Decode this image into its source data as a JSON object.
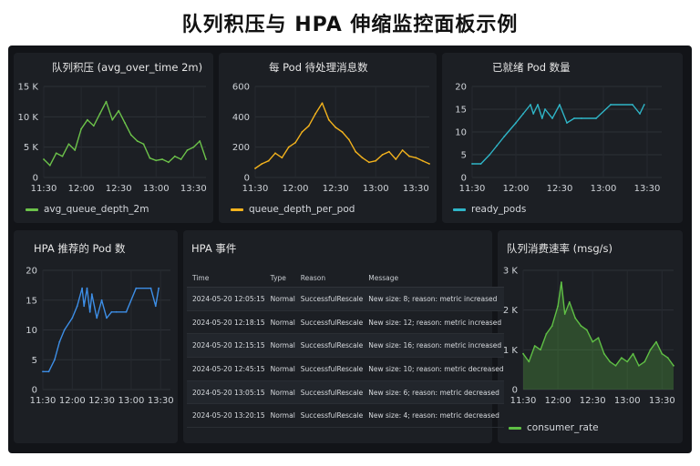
{
  "page_title": "队列积压与 HPA 伸缩监控面板示例",
  "panels": {
    "backlog": {
      "title": "队列积压 (avg_over_time 2m)",
      "legend": "avg_queue_depth_2m"
    },
    "per_pod": {
      "title": "每 Pod 待处理消息数",
      "legend": "queue_depth_per_pod"
    },
    "scaled": {
      "title": "已就绪 Pod 数量",
      "legend": "ready_pods"
    },
    "recommend": {
      "title": "HPA 推荐的 Pod 数"
    },
    "events": {
      "title": "HPA 事件",
      "columns": [
        "Time",
        "Type",
        "Reason",
        "Message"
      ],
      "rows": [
        [
          "2024-05-20 12:05:15",
          "Normal",
          "SuccessfulRescale",
          "New size: 8; reason: metric increased"
        ],
        [
          "2024-05-20 12:18:15",
          "Normal",
          "SuccessfulRescale",
          "New size: 12; reason: metric increased"
        ],
        [
          "2024-05-20 12:15:15",
          "Normal",
          "SuccessfulRescale",
          "New size: 16; reason: metric increased"
        ],
        [
          "2024-05-20 12:45:15",
          "Normal",
          "SuccessfulRescale",
          "New size: 10; reason: metric decreased"
        ],
        [
          "2024-05-20 13:05:15",
          "Normal",
          "SuccessfulRescale",
          "New size: 6; reason: metric decreased"
        ],
        [
          "2024-05-20 13:20:15",
          "Normal",
          "SuccessfulRescale",
          "New size: 4; reason: metric decreased"
        ]
      ]
    },
    "rate": {
      "title": "队列消费速率 (msg/s)",
      "legend": "consumer_rate"
    }
  },
  "colors": {
    "backlog": "#6cc24a",
    "per_pod": "#f2b21d",
    "scaled": "#2fb5c7",
    "recommend": "#3d8ee6",
    "rate": "#5fbf45"
  },
  "chart_data": [
    {
      "id": "backlog",
      "type": "line",
      "ylim": [
        0,
        15000
      ],
      "y_ticks": [
        "0",
        "5 K",
        "10 K",
        "15 K"
      ],
      "x_ticks": [
        "11:30",
        "12:00",
        "12:30",
        "13:00",
        "13:30"
      ],
      "xlim": [
        "11:30",
        "13:40"
      ],
      "series": [
        {
          "name": "avg_queue_depth_2m",
          "x": [
            "11:30",
            "11:35",
            "11:40",
            "11:45",
            "11:50",
            "11:55",
            "12:00",
            "12:05",
            "12:10",
            "12:15",
            "12:20",
            "12:25",
            "12:30",
            "12:35",
            "12:40",
            "12:45",
            "12:50",
            "12:55",
            "13:00",
            "13:05",
            "13:10",
            "13:15",
            "13:20",
            "13:25",
            "13:30",
            "13:35",
            "13:40"
          ],
          "values": [
            3000,
            2000,
            4000,
            3500,
            5500,
            4500,
            8000,
            9500,
            8500,
            10500,
            12500,
            9500,
            11000,
            9000,
            7000,
            6000,
            5500,
            3200,
            2800,
            3000,
            2500,
            3500,
            3000,
            4500,
            5000,
            6000,
            3000
          ]
        }
      ]
    },
    {
      "id": "per_pod",
      "type": "line",
      "ylim": [
        0,
        600
      ],
      "y_ticks": [
        "0",
        "200",
        "400",
        "600"
      ],
      "x_ticks": [
        "11:30",
        "12:00",
        "12:30",
        "13:00",
        "13:30"
      ],
      "xlim": [
        "11:30",
        "13:40"
      ],
      "series": [
        {
          "name": "queue_depth_per_pod",
          "x": [
            "11:30",
            "11:35",
            "11:40",
            "11:45",
            "11:50",
            "11:55",
            "12:00",
            "12:05",
            "12:10",
            "12:15",
            "12:20",
            "12:25",
            "12:30",
            "12:35",
            "12:40",
            "12:45",
            "12:50",
            "12:55",
            "13:00",
            "13:05",
            "13:10",
            "13:15",
            "13:20",
            "13:25",
            "13:30",
            "13:35",
            "13:40"
          ],
          "values": [
            60,
            90,
            110,
            160,
            130,
            200,
            230,
            300,
            340,
            420,
            490,
            380,
            330,
            300,
            250,
            170,
            130,
            100,
            110,
            150,
            170,
            120,
            180,
            140,
            130,
            110,
            90
          ]
        }
      ]
    },
    {
      "id": "scaled",
      "type": "line",
      "ylim": [
        0,
        20
      ],
      "y_ticks": [
        "0",
        "5",
        "10",
        "15",
        "20"
      ],
      "x_ticks": [
        "11:30",
        "12:00",
        "12:30",
        "13:00",
        "13:30"
      ],
      "xlim": [
        "11:30",
        "13:40"
      ],
      "series": [
        {
          "name": "ready_pods",
          "x": [
            "11:30",
            "11:36",
            "11:42",
            "11:47",
            "11:52",
            "12:00",
            "12:05",
            "12:10",
            "12:12",
            "12:15",
            "12:18",
            "12:20",
            "12:25",
            "12:30",
            "12:35",
            "12:40",
            "12:45",
            "12:55",
            "13:05",
            "13:20",
            "13:25",
            "13:28"
          ],
          "values": [
            3,
            3,
            5,
            7,
            9,
            12,
            14,
            16,
            14,
            16,
            13,
            15,
            13,
            16,
            12,
            13,
            13,
            13,
            16,
            16,
            14,
            16
          ]
        }
      ]
    },
    {
      "id": "recommend",
      "type": "line",
      "ylim": [
        0,
        20
      ],
      "y_ticks": [
        "0",
        "5",
        "10",
        "15",
        "20"
      ],
      "x_ticks": [
        "11:30",
        "12:00",
        "12:30",
        "13:00",
        "13:30"
      ],
      "xlim": [
        "11:30",
        "13:40"
      ],
      "series": [
        {
          "name": "",
          "x": [
            "11:30",
            "11:36",
            "11:42",
            "11:47",
            "11:52",
            "12:00",
            "12:05",
            "12:10",
            "12:12",
            "12:15",
            "12:18",
            "12:20",
            "12:25",
            "12:30",
            "12:35",
            "12:40",
            "12:45",
            "12:55",
            "13:05",
            "13:20",
            "13:25",
            "13:28"
          ],
          "values": [
            3,
            3,
            5,
            8,
            10,
            12,
            14,
            17,
            14,
            17,
            13,
            16,
            12,
            15,
            12,
            13,
            13,
            13,
            17,
            17,
            14,
            17
          ]
        }
      ]
    },
    {
      "id": "rate",
      "type": "area",
      "ylim": [
        0,
        3000
      ],
      "y_ticks": [
        "0",
        "1 K",
        "2 K",
        "3 K"
      ],
      "x_ticks": [
        "11:30",
        "12:00",
        "12:30",
        "13:00",
        "13:30"
      ],
      "xlim": [
        "11:30",
        "13:40"
      ],
      "series": [
        {
          "name": "consumer_rate",
          "x": [
            "11:30",
            "11:35",
            "11:40",
            "11:45",
            "11:50",
            "11:55",
            "12:00",
            "12:03",
            "12:06",
            "12:10",
            "12:15",
            "12:20",
            "12:25",
            "12:30",
            "12:35",
            "12:40",
            "12:45",
            "12:50",
            "12:55",
            "13:00",
            "13:05",
            "13:10",
            "13:15",
            "13:20",
            "13:25",
            "13:30",
            "13:35",
            "13:40"
          ],
          "values": [
            900,
            700,
            1100,
            1000,
            1400,
            1600,
            2100,
            2700,
            1900,
            2200,
            1800,
            1600,
            1500,
            1200,
            1300,
            900,
            700,
            600,
            800,
            700,
            900,
            600,
            700,
            1000,
            1200,
            900,
            800,
            600
          ]
        }
      ]
    }
  ]
}
